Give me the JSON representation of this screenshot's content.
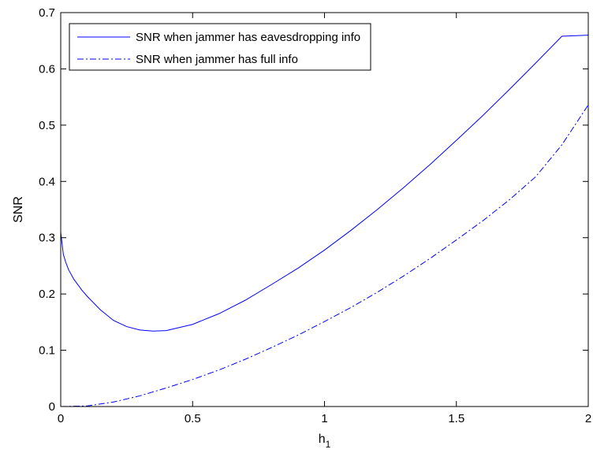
{
  "chart_data": {
    "type": "line",
    "title": "",
    "xlabel": "h",
    "xlabel_subscript": "1",
    "ylabel": "SNR",
    "xlim": [
      0,
      2
    ],
    "ylim": [
      0,
      0.7
    ],
    "x_ticks": [
      0,
      0.5,
      1,
      1.5,
      2
    ],
    "x_tick_labels": [
      "0",
      "0.5",
      "1",
      "1.5",
      "2"
    ],
    "y_ticks": [
      0,
      0.1,
      0.2,
      0.3,
      0.4,
      0.5,
      0.6,
      0.7
    ],
    "y_tick_labels": [
      "0",
      "0.1",
      "0.2",
      "0.3",
      "0.4",
      "0.5",
      "0.6",
      "0.7"
    ],
    "grid": false,
    "legend_position": "top-left",
    "series": [
      {
        "name": "SNR when jammer has eavesdropping info",
        "color": "#0000ff",
        "line_style": "solid",
        "x": [
          0,
          0.01,
          0.02,
          0.03,
          0.05,
          0.08,
          0.1,
          0.15,
          0.2,
          0.25,
          0.3,
          0.35,
          0.4,
          0.5,
          0.6,
          0.7,
          0.8,
          0.9,
          1.0,
          1.1,
          1.2,
          1.3,
          1.4,
          1.5,
          1.6,
          1.7,
          1.8,
          1.9,
          2.0
        ],
        "y": [
          0.31,
          0.27,
          0.255,
          0.243,
          0.226,
          0.207,
          0.196,
          0.172,
          0.153,
          0.142,
          0.136,
          0.134,
          0.135,
          0.146,
          0.165,
          0.189,
          0.217,
          0.246,
          0.278,
          0.313,
          0.35,
          0.389,
          0.43,
          0.473,
          0.517,
          0.563,
          0.61,
          0.658,
          0.66
        ]
      },
      {
        "name": "SNR when jammer has full info",
        "color": "#0000ff",
        "line_style": "dash-dot",
        "x": [
          0,
          0.1,
          0.2,
          0.3,
          0.4,
          0.5,
          0.6,
          0.7,
          0.8,
          0.9,
          1.0,
          1.1,
          1.2,
          1.3,
          1.4,
          1.5,
          1.6,
          1.7,
          1.8,
          1.9,
          2.0
        ],
        "y": [
          0,
          0.001,
          0.008,
          0.019,
          0.033,
          0.048,
          0.065,
          0.084,
          0.105,
          0.127,
          0.151,
          0.176,
          0.203,
          0.232,
          0.263,
          0.296,
          0.33,
          0.367,
          0.408,
          0.465,
          0.536
        ]
      }
    ]
  }
}
